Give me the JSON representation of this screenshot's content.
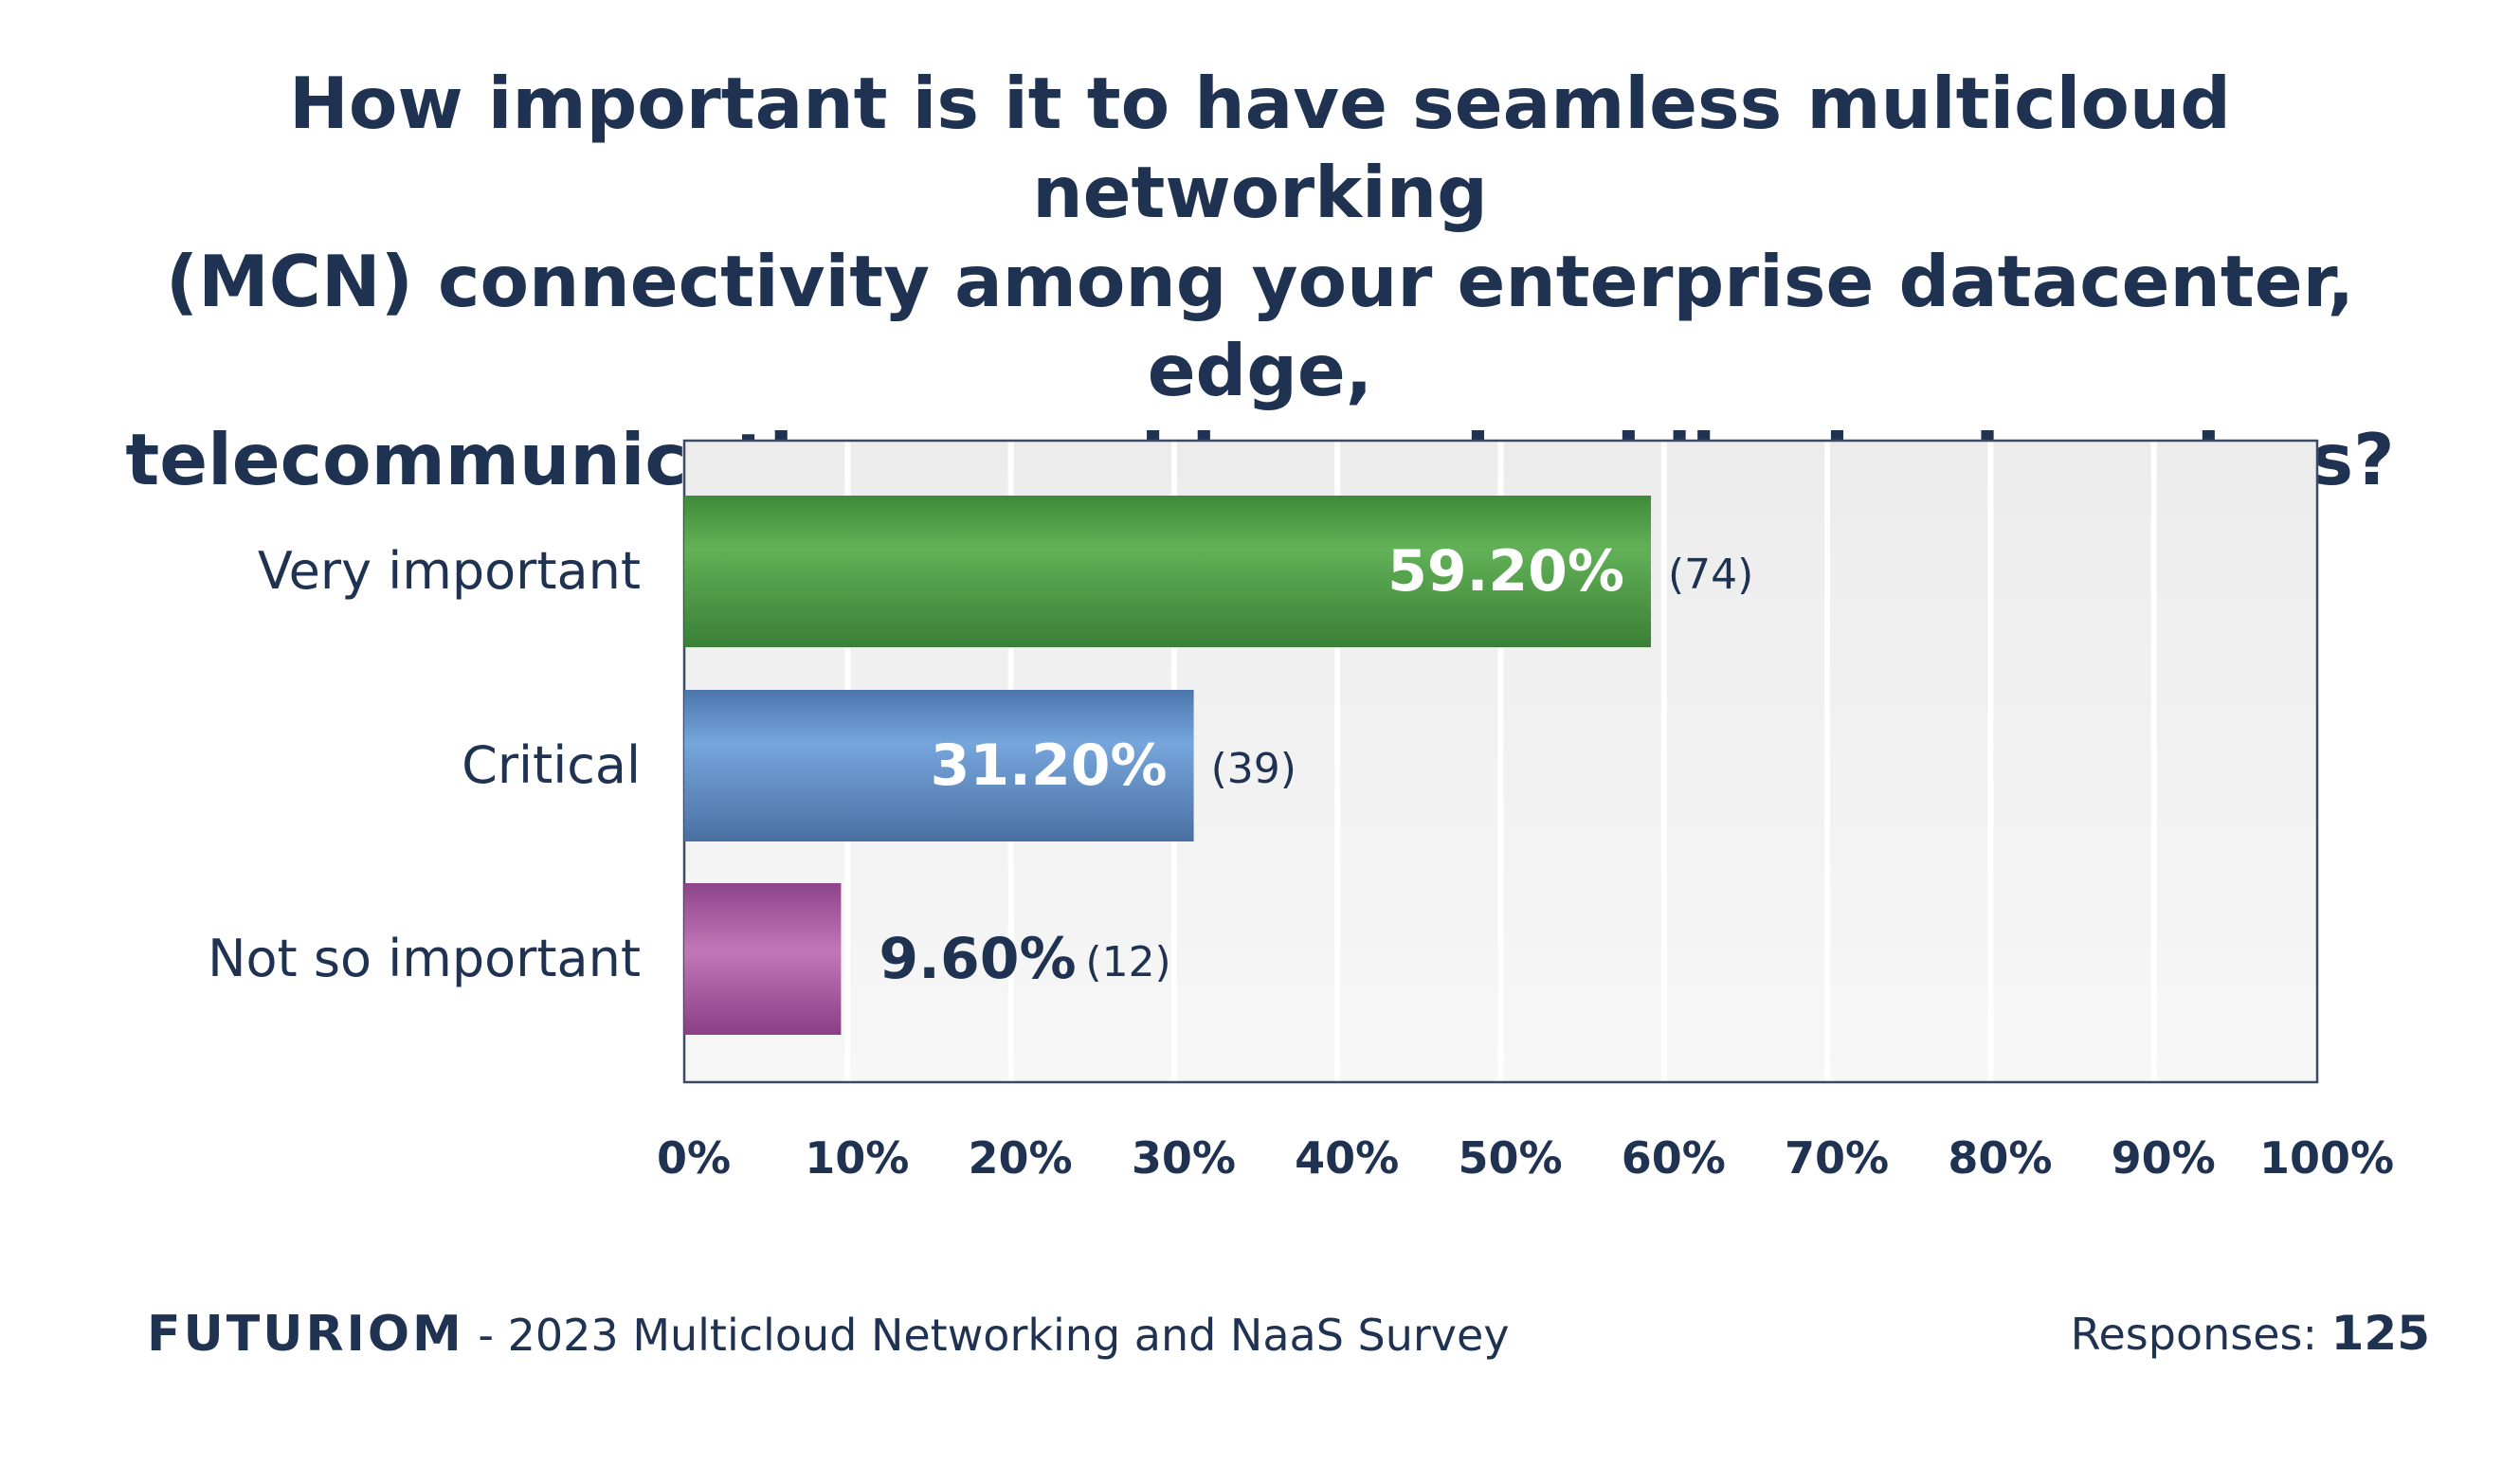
{
  "title_lines": [
    "How important is it to have seamless multicloud networking",
    "(MCN) connectivity among your enterprise datacenter, edge,",
    "telecommunications provider, and public cloud services?"
  ],
  "footer": {
    "brand": "FUTURIOM",
    "survey": " - 2023 Multicloud Networking and NaaS Survey",
    "responses_label": "Responses: ",
    "responses_value": "125"
  },
  "colors": {
    "very_important": "#4f9e47",
    "critical": "#5e8cc6",
    "not_so_important": "#a85aa3",
    "text": "#1f3251"
  },
  "chart_data": {
    "type": "bar",
    "orientation": "horizontal",
    "title": "How important is it to have seamless multicloud networking (MCN) connectivity among your enterprise datacenter, edge, telecommunications provider, and public cloud services?",
    "categories": [
      "Very important",
      "Critical",
      "Not so important"
    ],
    "values": [
      59.2,
      31.2,
      9.6
    ],
    "value_labels": [
      "59.20%",
      "31.20%",
      "9.60%"
    ],
    "counts": [
      "(74)",
      "(39)",
      "(12)"
    ],
    "xlim": [
      0,
      100
    ],
    "x_ticks": [
      "0%",
      "10%",
      "20%",
      "30%",
      "40%",
      "50%",
      "60%",
      "70%",
      "80%",
      "90%",
      "100%"
    ],
    "grid": true
  }
}
